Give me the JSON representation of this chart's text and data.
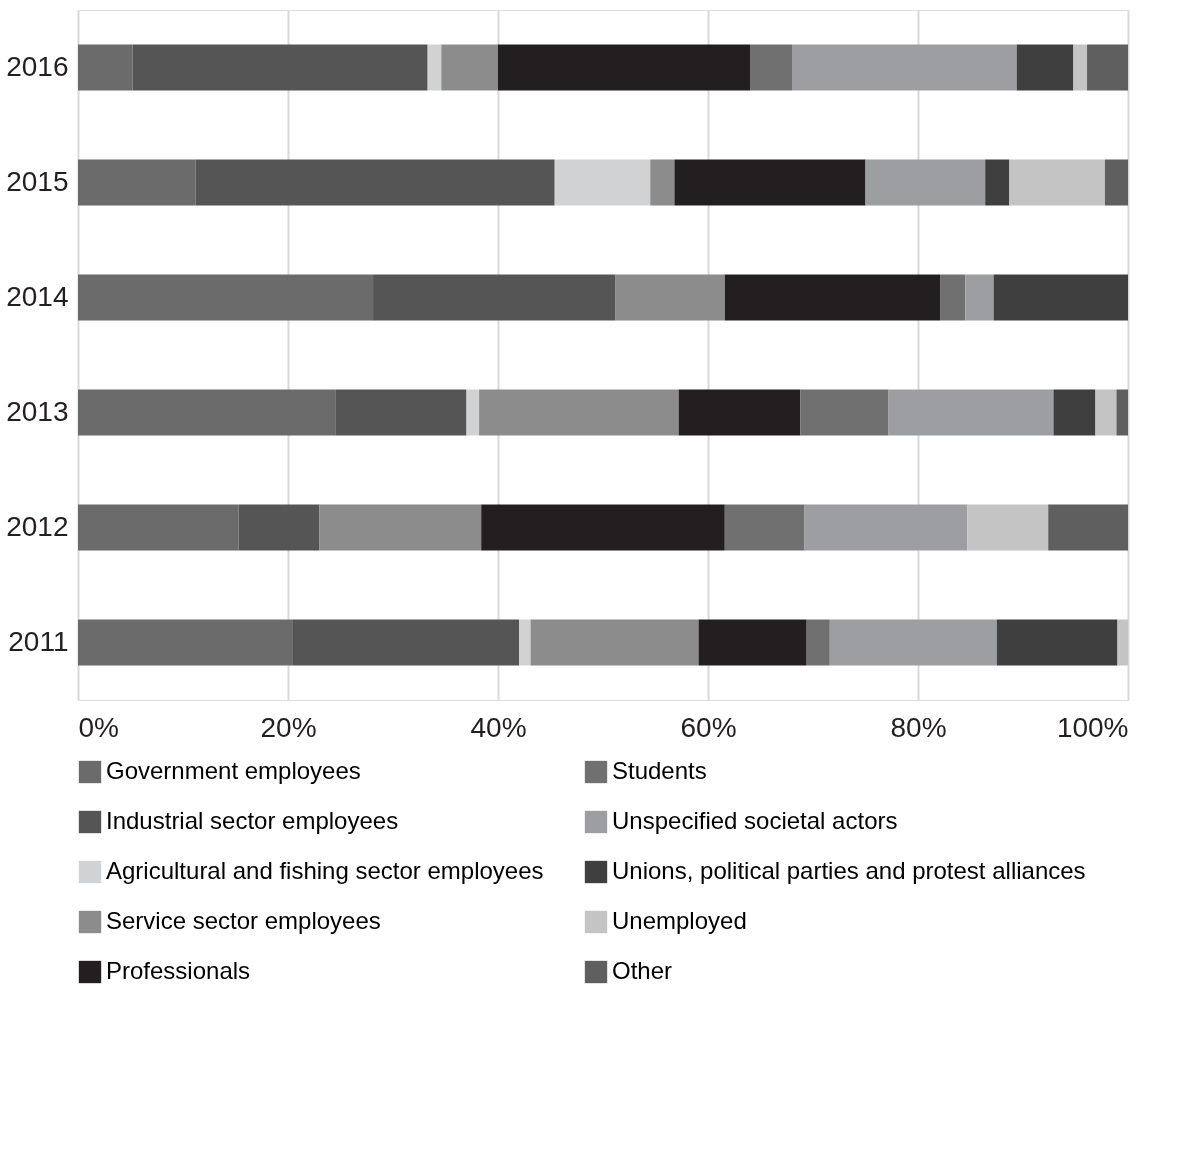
{
  "chart_data": {
    "type": "bar",
    "orientation": "horizontal",
    "stacked": true,
    "categories": [
      "2016",
      "2015",
      "2014",
      "2013",
      "2012",
      "2011"
    ],
    "xlim": [
      0,
      100
    ],
    "xticks": [
      {
        "value": 0,
        "label": "0%"
      },
      {
        "value": 20,
        "label": "20%"
      },
      {
        "value": 40,
        "label": "40%"
      },
      {
        "value": 60,
        "label": "60%"
      },
      {
        "value": 80,
        "label": "80%"
      },
      {
        "value": 100,
        "label": "100%"
      }
    ],
    "grid": "x",
    "legend": "bottom",
    "series": [
      {
        "name": "Government employees",
        "color": "#6b6b6b",
        "values": [
          5.2,
          11.2,
          28.1,
          24.5,
          15.3,
          20.4
        ]
      },
      {
        "name": "Industrial sector employees",
        "color": "#555555",
        "values": [
          28.1,
          34.2,
          23.1,
          12.5,
          7.7,
          21.6
        ]
      },
      {
        "name": "Agricultural and fishing sector employees",
        "color": "#d1d2d4",
        "values": [
          1.3,
          9.1,
          null,
          1.2,
          null,
          1.1
        ]
      },
      {
        "name": "Service sector employees",
        "color": "#8c8c8c",
        "values": [
          5.4,
          2.3,
          10.4,
          19.0,
          15.4,
          16.0
        ]
      },
      {
        "name": "Professionals",
        "color": "#231f20",
        "values": [
          24.0,
          18.2,
          20.5,
          11.6,
          23.2,
          10.3
        ]
      },
      {
        "name": "Students",
        "color": "#707070",
        "values": [
          4.0,
          null,
          2.4,
          8.4,
          7.6,
          2.2
        ]
      },
      {
        "name": "Unspecified societal actors",
        "color": "#9d9ea2",
        "values": [
          21.4,
          11.4,
          2.7,
          15.7,
          15.5,
          15.9
        ]
      },
      {
        "name": "Unions, political parties and protest alliances",
        "color": "#3f3f3f",
        "values": [
          5.4,
          2.3,
          12.8,
          4.0,
          null,
          11.5
        ]
      },
      {
        "name": "Unemployed",
        "color": "#c4c4c4",
        "values": [
          1.3,
          9.1,
          null,
          2.0,
          7.7,
          1.0
        ]
      },
      {
        "name": "Other",
        "color": "#5f5f5f",
        "values": [
          3.9,
          2.2,
          null,
          1.1,
          7.6,
          null
        ]
      }
    ]
  }
}
